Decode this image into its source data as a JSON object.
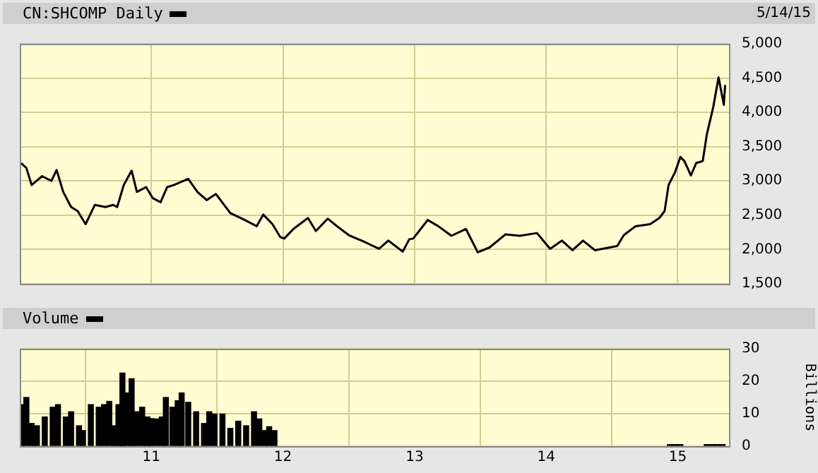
{
  "chart_data": [
    {
      "type": "line",
      "xlim": [
        2010,
        2015.4
      ],
      "xticks": [
        {
          "value": 2011,
          "label": null
        },
        {
          "value": 2012,
          "label": null
        },
        {
          "value": 2013,
          "label": null
        },
        {
          "value": 2014,
          "label": null
        },
        {
          "value": 2015,
          "label": null
        }
      ],
      "ylim": [
        1500,
        5000
      ],
      "yticks": [
        {
          "value": 1500,
          "label": "1,500"
        },
        {
          "value": 2000,
          "label": "2,000"
        },
        {
          "value": 2500,
          "label": "2,500"
        },
        {
          "value": 3000,
          "label": "3,000"
        },
        {
          "value": 3500,
          "label": "3,500"
        },
        {
          "value": 4000,
          "label": "4,000"
        },
        {
          "value": 4500,
          "label": "4,500"
        },
        {
          "value": 5000,
          "label": "5,000"
        }
      ],
      "tick_labels": "y",
      "grid": true,
      "legend": "top left",
      "annotations": [
        "5/14/15"
      ],
      "series": [
        {
          "name": "CN:SHCOMP Daily",
          "color": "#000000",
          "x": [
            2010.01,
            2010.05,
            2010.09,
            2010.17,
            2010.24,
            2010.28,
            2010.33,
            2010.39,
            2010.44,
            2010.5,
            2010.57,
            2010.65,
            2010.71,
            2010.74,
            2010.79,
            2010.85,
            2010.89,
            2010.96,
            2011.01,
            2011.07,
            2011.12,
            2011.17,
            2011.28,
            2011.35,
            2011.42,
            2011.49,
            2011.6,
            2011.71,
            2011.8,
            2011.85,
            2011.92,
            2011.98,
            2012.01,
            2012.08,
            2012.19,
            2012.25,
            2012.34,
            2012.41,
            2012.5,
            2012.62,
            2012.73,
            2012.8,
            2012.91,
            2012.96,
            2012.99,
            2013.1,
            2013.18,
            2013.28,
            2013.39,
            2013.48,
            2013.57,
            2013.69,
            2013.8,
            2013.93,
            2014.03,
            2014.12,
            2014.2,
            2014.28,
            2014.37,
            2014.54,
            2014.59,
            2014.68,
            2014.79,
            2014.86,
            2014.9,
            2014.93,
            2014.98,
            2015.02,
            2015.05,
            2015.1,
            2015.14,
            2015.19,
            2015.22,
            2015.27,
            2015.31,
            2015.35,
            2015.36
          ],
          "values": [
            3260,
            3190,
            2940,
            3070,
            3000,
            3160,
            2840,
            2620,
            2560,
            2370,
            2650,
            2620,
            2650,
            2620,
            2940,
            3150,
            2840,
            2910,
            2750,
            2690,
            2910,
            2940,
            3030,
            2840,
            2720,
            2810,
            2530,
            2430,
            2340,
            2510,
            2370,
            2180,
            2160,
            2300,
            2460,
            2270,
            2450,
            2340,
            2210,
            2110,
            2010,
            2130,
            1970,
            2150,
            2160,
            2430,
            2340,
            2200,
            2300,
            1960,
            2030,
            2220,
            2200,
            2240,
            2010,
            2130,
            1990,
            2130,
            1990,
            2050,
            2210,
            2340,
            2370,
            2460,
            2560,
            2940,
            3130,
            3350,
            3290,
            3080,
            3260,
            3290,
            3670,
            4080,
            4510,
            4110,
            4400
          ]
        }
      ]
    },
    {
      "type": "bar",
      "ylabel": "Billions",
      "xlim": [
        2010,
        2015.4
      ],
      "xticks": [
        {
          "value": 2011,
          "label": "11"
        },
        {
          "value": 2012,
          "label": "12"
        },
        {
          "value": 2013,
          "label": "13"
        },
        {
          "value": 2014,
          "label": "14"
        },
        {
          "value": 2015,
          "label": "15"
        }
      ],
      "ylim": [
        0,
        30
      ],
      "yticks": [
        0,
        10,
        20,
        30
      ],
      "grid": true,
      "legend": "top left",
      "series": [
        {
          "name": "Volume",
          "color": "#000000",
          "x": [
            2010.015,
            2010.05,
            2010.09,
            2010.13,
            2010.19,
            2010.25,
            2010.29,
            2010.35,
            2010.39,
            2010.45,
            2010.48,
            2010.54,
            2010.6,
            2010.64,
            2010.68,
            2010.72,
            2010.75,
            2010.78,
            2010.81,
            2010.85,
            2010.89,
            2010.93,
            2010.97,
            2011.0,
            2011.04,
            2011.08,
            2011.11,
            2011.16,
            2011.2,
            2011.23,
            2011.28,
            2011.34,
            2011.4,
            2011.44,
            2011.48,
            2011.54,
            2011.6,
            2011.66,
            2011.72,
            2011.78,
            2011.82,
            2011.86,
            2011.895,
            2011.935,
            2014.94,
            2014.98,
            2015.02,
            2015.22,
            2015.26,
            2015.3,
            2015.34
          ],
          "values": [
            12.8,
            15,
            7,
            6.3,
            9,
            12,
            12.8,
            9,
            10.6,
            6.3,
            4.8,
            12.8,
            12,
            12.8,
            13.8,
            6.3,
            12.8,
            22.5,
            16.4,
            20.8,
            10.6,
            12,
            9,
            8.5,
            8.4,
            9,
            15,
            12,
            14,
            16.4,
            13.5,
            10.6,
            7,
            10.6,
            9.9,
            9.9,
            5.5,
            7.7,
            6.3,
            10.6,
            8.4,
            4.8,
            6,
            4.8,
            0.5,
            0.5,
            0.5,
            0.5,
            0.5,
            0.5,
            0.5
          ]
        }
      ]
    }
  ]
}
